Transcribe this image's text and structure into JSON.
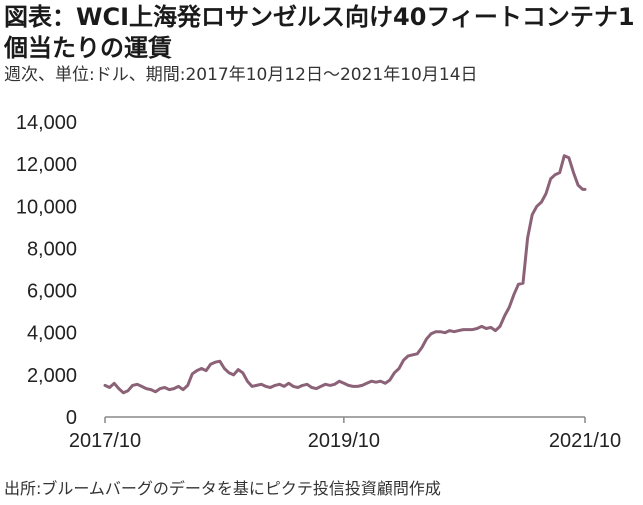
{
  "title": "図表：WCI上海発ロサンゼルス向け40フィートコンテナ1個当たりの運賃",
  "subtitle": "週次、単位:ドル、期間:2017年10月12日～2021年10月14日",
  "source": "出所:ブルームバーグのデータを基にピクテ投信投資顧問作成",
  "chart_data": {
    "type": "line",
    "title": "図表：WCI上海発ロサンゼルス向け40フィートコンテナ1個当たりの運賃",
    "xlabel": "",
    "ylabel": "",
    "ylim": [
      0,
      14000
    ],
    "xlim": [
      "2017-10-12",
      "2021-10-14"
    ],
    "y_ticks": [
      "0",
      "2,000",
      "4,000",
      "6,000",
      "8,000",
      "10,000",
      "12,000",
      "14,000"
    ],
    "y_tick_values": [
      0,
      2000,
      4000,
      6000,
      8000,
      10000,
      12000,
      14000
    ],
    "x_ticks": [
      "2017/10",
      "2019/10",
      "2021/10"
    ],
    "x_tick_dates": [
      "2017-10-12",
      "2019-10-10",
      "2021-10-14"
    ],
    "grid": false,
    "line_color": "#8b6277",
    "series": [
      {
        "x": [
          "2017-10-12",
          "2017-10-26",
          "2017-11-09",
          "2017-11-23",
          "2017-12-07",
          "2017-12-21",
          "2018-01-04",
          "2018-01-18",
          "2018-02-01",
          "2018-02-15",
          "2018-03-01",
          "2018-03-15",
          "2018-03-29",
          "2018-04-12",
          "2018-04-26",
          "2018-05-10",
          "2018-05-24",
          "2018-06-07",
          "2018-06-21",
          "2018-07-05",
          "2018-07-19",
          "2018-08-02",
          "2018-08-16",
          "2018-08-30",
          "2018-09-13",
          "2018-09-27",
          "2018-10-11",
          "2018-10-25",
          "2018-11-08",
          "2018-11-22",
          "2018-12-06",
          "2018-12-20",
          "2019-01-03",
          "2019-01-17",
          "2019-01-31",
          "2019-02-14",
          "2019-02-28",
          "2019-03-14",
          "2019-03-28",
          "2019-04-11",
          "2019-04-25",
          "2019-05-09",
          "2019-05-23",
          "2019-06-06",
          "2019-06-20",
          "2019-07-04",
          "2019-07-18",
          "2019-08-01",
          "2019-08-15",
          "2019-08-29",
          "2019-09-12",
          "2019-09-26",
          "2019-10-10",
          "2019-10-24",
          "2019-11-07",
          "2019-11-21",
          "2019-12-05",
          "2019-12-19",
          "2020-01-02",
          "2020-01-16",
          "2020-01-30",
          "2020-02-13",
          "2020-02-27",
          "2020-03-12",
          "2020-03-26",
          "2020-04-09",
          "2020-04-23",
          "2020-05-07",
          "2020-05-21",
          "2020-06-04",
          "2020-06-18",
          "2020-07-02",
          "2020-07-16",
          "2020-07-30",
          "2020-08-13",
          "2020-08-27",
          "2020-09-10",
          "2020-09-24",
          "2020-10-08",
          "2020-10-22",
          "2020-11-05",
          "2020-11-19",
          "2020-12-03",
          "2020-12-17",
          "2020-12-31",
          "2021-01-14",
          "2021-01-28",
          "2021-02-11",
          "2021-02-25",
          "2021-03-11",
          "2021-03-25",
          "2021-04-08",
          "2021-04-22",
          "2021-05-06",
          "2021-05-20",
          "2021-06-03",
          "2021-06-17",
          "2021-07-01",
          "2021-07-15",
          "2021-07-29",
          "2021-08-12",
          "2021-08-26",
          "2021-09-09",
          "2021-09-23",
          "2021-10-07",
          "2021-10-14"
        ],
        "values": [
          1500,
          1400,
          1600,
          1350,
          1150,
          1250,
          1500,
          1550,
          1450,
          1350,
          1300,
          1200,
          1350,
          1400,
          1300,
          1350,
          1450,
          1300,
          1500,
          2050,
          2200,
          2300,
          2200,
          2500,
          2600,
          2650,
          2300,
          2100,
          2000,
          2250,
          2100,
          1700,
          1450,
          1500,
          1550,
          1450,
          1400,
          1500,
          1550,
          1450,
          1600,
          1450,
          1400,
          1500,
          1550,
          1400,
          1350,
          1450,
          1550,
          1500,
          1550,
          1700,
          1600,
          1500,
          1450,
          1450,
          1500,
          1600,
          1700,
          1650,
          1700,
          1600,
          1750,
          2100,
          2300,
          2700,
          2900,
          2950,
          3000,
          3300,
          3700,
          3950,
          4050,
          4050,
          4000,
          4100,
          4050,
          4100,
          4150,
          4150,
          4150,
          4200,
          4300,
          4200,
          4250,
          4100,
          4300,
          4800,
          5200,
          5800,
          6300,
          6350,
          8500,
          9600,
          10000,
          10200,
          10600,
          11300,
          11500,
          11600,
          12400,
          12300,
          11600,
          11000,
          10800,
          10800
        ]
      }
    ]
  }
}
